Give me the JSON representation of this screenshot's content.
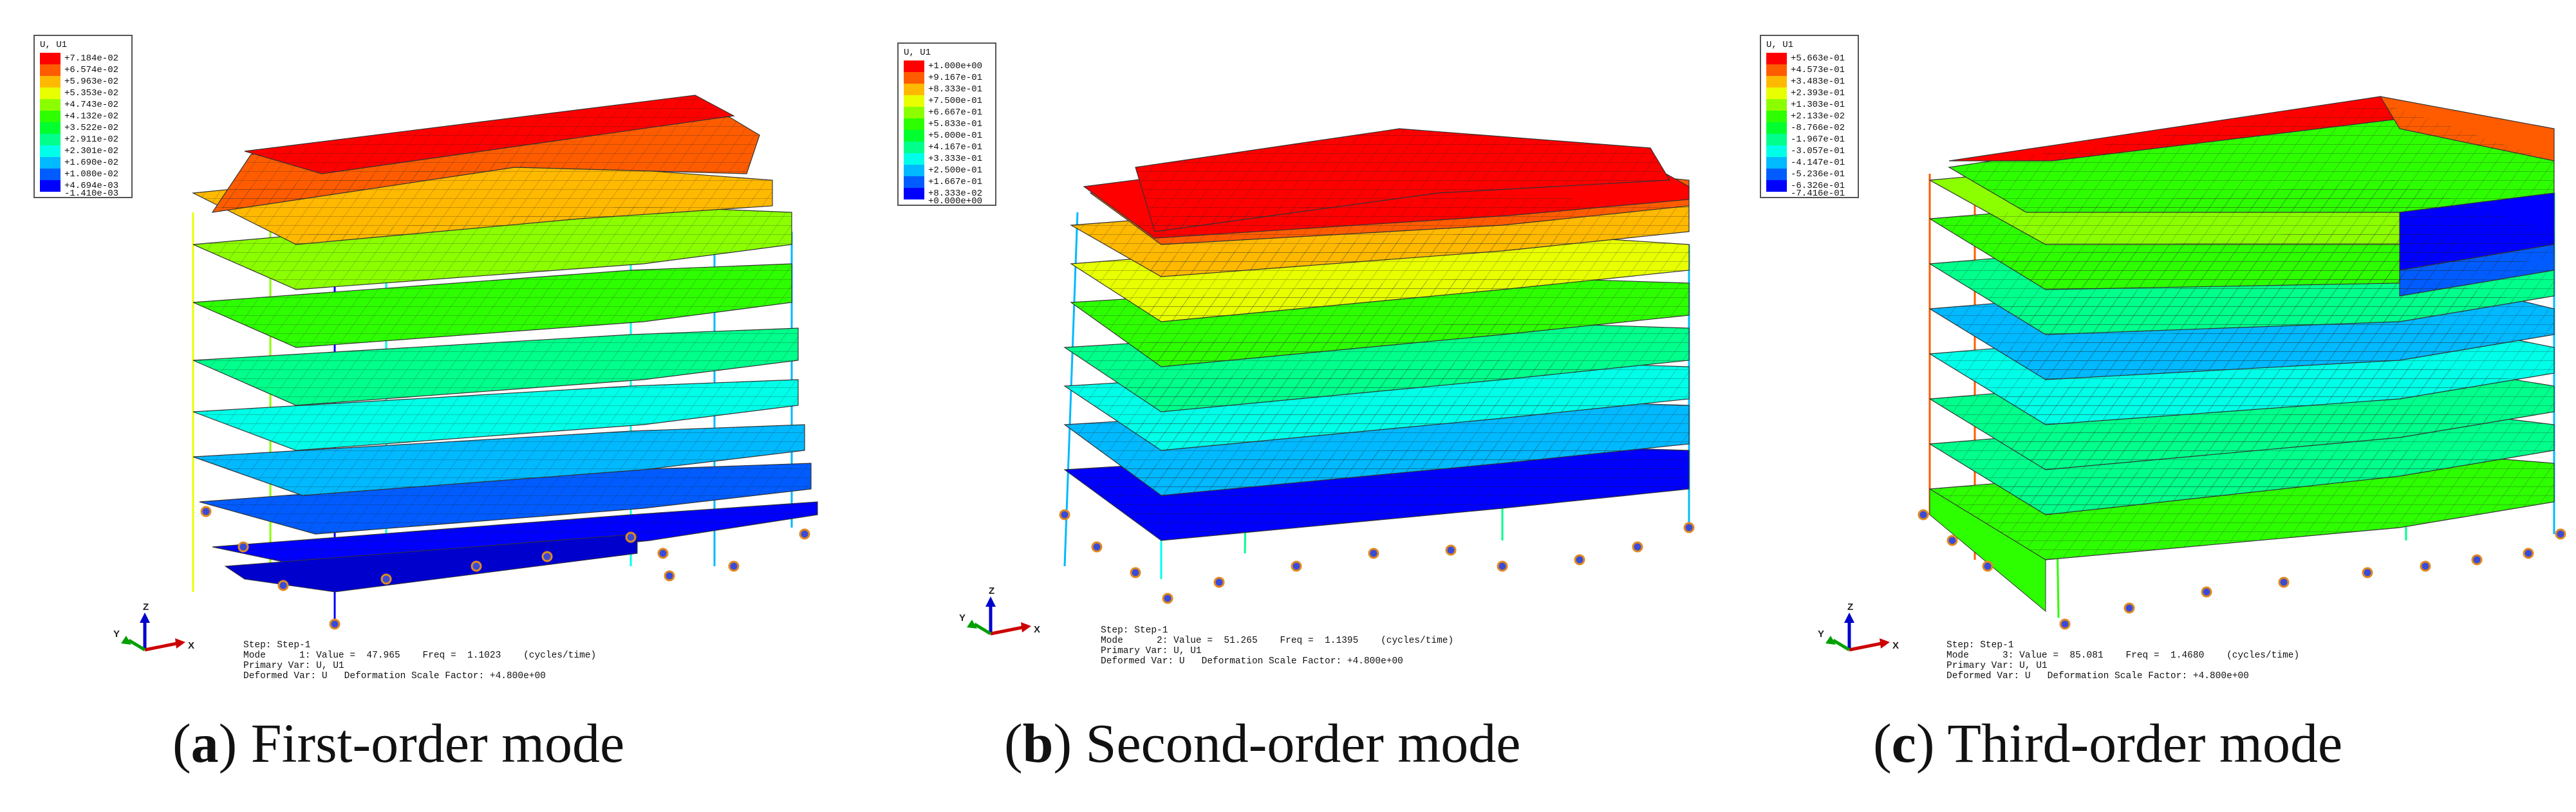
{
  "colors": {
    "scale": [
      "#0000ff",
      "#005cff",
      "#00b9ff",
      "#00ffe8",
      "#00ff8b",
      "#00ff2e",
      "#2eff00",
      "#8bff00",
      "#e8ff00",
      "#ffb900",
      "#ff5c00",
      "#ff0000"
    ],
    "support": "#2b3bd0"
  },
  "panels": [
    {
      "legend": {
        "title": "U, U1",
        "values": [
          "+7.184e-02",
          "+6.574e-02",
          "+5.963e-02",
          "+5.353e-02",
          "+4.743e-02",
          "+4.132e-02",
          "+3.522e-02",
          "+2.911e-02",
          "+2.301e-02",
          "+1.690e-02",
          "+1.080e-02",
          "+4.694e-03",
          "-1.410e-03"
        ]
      },
      "info": {
        "step": "Step: Step-1",
        "mode": "Mode      1: Value =  47.965    Freq =  1.1023    (cycles/time)",
        "primary": "Primary Var: U, U1",
        "deformed": "Deformed Var: U   Deformation Scale Factor: +4.800e+00"
      },
      "caption": {
        "letter": "a",
        "text": "First-order mode"
      }
    },
    {
      "legend": {
        "title": "U, U1",
        "values": [
          "+1.000e+00",
          "+9.167e-01",
          "+8.333e-01",
          "+7.500e-01",
          "+6.667e-01",
          "+5.833e-01",
          "+5.000e-01",
          "+4.167e-01",
          "+3.333e-01",
          "+2.500e-01",
          "+1.667e-01",
          "+8.333e-02",
          "+0.000e+00"
        ]
      },
      "info": {
        "step": "Step: Step-1",
        "mode": "Mode      2: Value =  51.265    Freq =  1.1395    (cycles/time)",
        "primary": "Primary Var: U, U1",
        "deformed": "Deformed Var: U   Deformation Scale Factor: +4.800e+00"
      },
      "caption": {
        "letter": "b",
        "text": "Second-order mode"
      }
    },
    {
      "legend": {
        "title": "U, U1",
        "values": [
          "+5.663e-01",
          "+4.573e-01",
          "+3.483e-01",
          "+2.393e-01",
          "+1.303e-01",
          "+2.133e-02",
          "-8.766e-02",
          "-1.967e-01",
          "-3.057e-01",
          "-4.147e-01",
          "-5.236e-01",
          "-6.326e-01",
          "-7.416e-01"
        ]
      },
      "info": {
        "step": "Step: Step-1",
        "mode": "Mode      3: Value =  85.081    Freq =  1.4680    (cycles/time)",
        "primary": "Primary Var: U, U1",
        "deformed": "Deformed Var: U   Deformation Scale Factor: +4.800e+00"
      },
      "caption": {
        "letter": "c",
        "text": "Third-order mode"
      }
    }
  ],
  "triad": {
    "x": "X",
    "y": "Y",
    "z": "Z"
  }
}
